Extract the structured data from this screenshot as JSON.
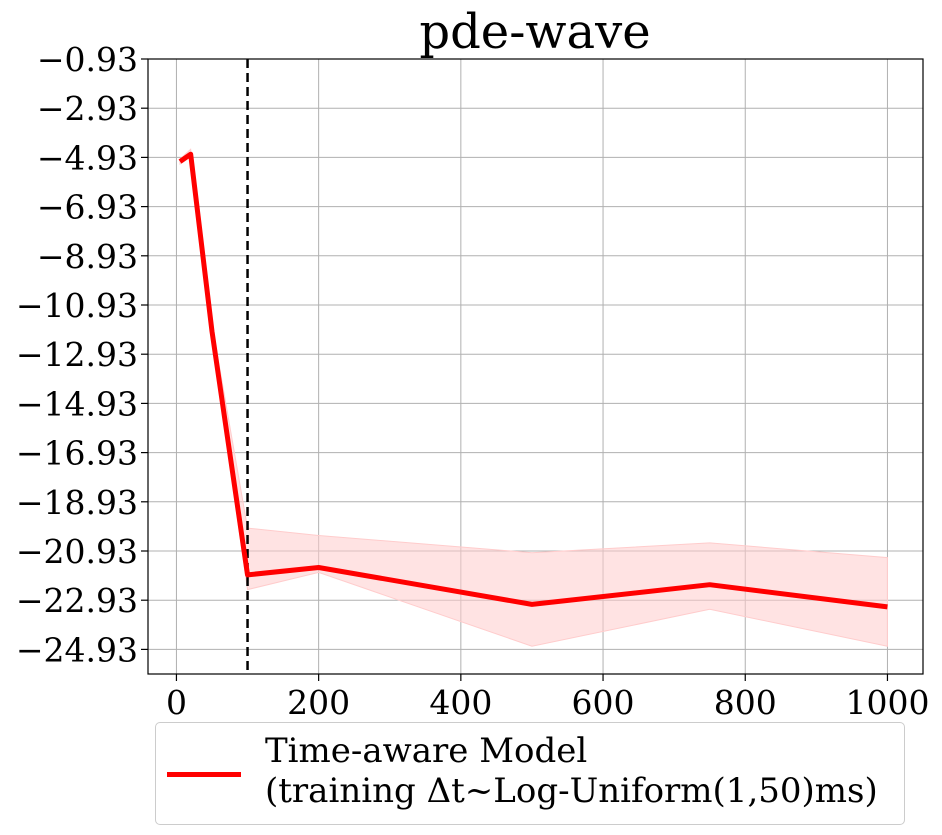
{
  "chart_data": {
    "type": "line",
    "title": "pde-wave",
    "xlabel": "",
    "ylabel": "",
    "xlim": [
      -40,
      1050
    ],
    "ylim": [
      -25.93,
      -0.93
    ],
    "x_ticks": [
      0,
      200,
      400,
      600,
      800,
      1000
    ],
    "y_ticks": [
      -0.93,
      -2.93,
      -4.93,
      -6.93,
      -8.93,
      -10.93,
      -12.93,
      -14.93,
      -16.93,
      -18.93,
      -20.93,
      -22.93,
      -24.93
    ],
    "grid": true,
    "vertical_reference_line": {
      "x": 100,
      "style": "dashed",
      "color": "#000000"
    },
    "series": [
      {
        "name": "Time-aware Model\n(training Δt~Log-Uniform(1,50)ms)",
        "color": "#ff0000",
        "x": [
          5,
          20,
          50,
          100,
          200,
          500,
          750,
          1000
        ],
        "y": [
          -5.1,
          -4.8,
          -12.0,
          -21.9,
          -21.6,
          -23.1,
          -22.3,
          -23.2
        ],
        "band_lower": [
          -5.2,
          -4.9,
          -12.3,
          -22.5,
          -21.8,
          -24.8,
          -23.3,
          -24.8
        ],
        "band_upper": [
          -5.0,
          -4.6,
          -11.7,
          -20.0,
          -20.3,
          -21.0,
          -20.6,
          -21.2
        ],
        "band_color": "#ffcccc"
      }
    ],
    "legend": {
      "placement": "bottom-center",
      "line1": "Time-aware Model",
      "line2": "(training Δt~Log-Uniform(1,50)ms)"
    }
  }
}
